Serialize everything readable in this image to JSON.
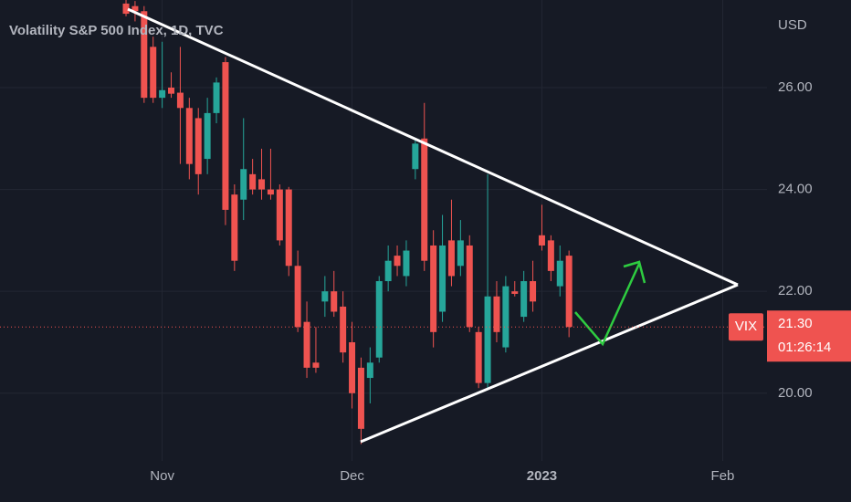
{
  "chart_data": {
    "type": "candlestick",
    "title": "Volatility S&P 500 Index, 1D, TVC",
    "currency": "USD",
    "symbol": "VIX",
    "last_price": {
      "value": 21.3,
      "label": "21.30"
    },
    "countdown": "01:26:14",
    "up_color": "#26a69a",
    "down_color": "#ef5350",
    "grid": true,
    "ylim": [
      18.67,
      27.72
    ],
    "yticks": [
      {
        "value": 20,
        "label": "20.00"
      },
      {
        "value": 22,
        "label": "22.00"
      },
      {
        "value": 24,
        "label": "24.00"
      },
      {
        "value": 26,
        "label": "26.00"
      }
    ],
    "xlim": [
      -13.94,
      70.9
    ],
    "xticks": [
      {
        "value": 4,
        "label": "Nov"
      },
      {
        "value": 25,
        "label": "Dec"
      },
      {
        "value": 46,
        "label": "2023"
      },
      {
        "value": 66,
        "label": "Feb"
      }
    ],
    "open": [
      27.65,
      27.6,
      27.5,
      26.8,
      25.8,
      26.0,
      25.9,
      25.6,
      25.4,
      24.6,
      25.5,
      26.5,
      23.9,
      23.8,
      24.3,
      24.2,
      24.0,
      24.0,
      24.0,
      22.5,
      21.4,
      20.6,
      21.8,
      22.0,
      21.7,
      21.0,
      20.5,
      20.3,
      20.7,
      22.2,
      22.7,
      22.3,
      24.4,
      25.0,
      22.9,
      21.6,
      23.0,
      22.5,
      22.9,
      21.2,
      20.2,
      21.9,
      20.9,
      22.0,
      21.5,
      22.2,
      23.1,
      23.0,
      22.1,
      22.7
    ],
    "high": [
      27.72,
      27.7,
      27.6,
      27.0,
      26.9,
      26.3,
      26.8,
      25.8,
      25.6,
      25.8,
      26.2,
      26.6,
      24.1,
      25.4,
      24.6,
      24.8,
      24.8,
      24.1,
      24.05,
      22.8,
      21.8,
      21.3,
      22.3,
      22.4,
      22.0,
      21.4,
      20.7,
      20.9,
      22.3,
      22.9,
      22.9,
      23.0,
      25.0,
      25.7,
      23.2,
      23.5,
      23.8,
      23.4,
      23.1,
      21.3,
      24.3,
      22.2,
      22.3,
      22.2,
      22.4,
      22.6,
      23.7,
      23.1,
      22.9,
      22.8
    ],
    "low": [
      27.4,
      27.3,
      25.7,
      25.7,
      25.6,
      25.8,
      24.5,
      24.2,
      23.9,
      24.3,
      25.3,
      23.3,
      22.4,
      23.4,
      23.9,
      23.8,
      23.8,
      22.9,
      22.3,
      21.2,
      20.3,
      20.4,
      21.5,
      21.5,
      20.6,
      19.7,
      19.0,
      19.8,
      20.6,
      22.0,
      22.3,
      22.1,
      24.2,
      22.4,
      20.9,
      21.4,
      22.1,
      22.3,
      21.2,
      20.1,
      20.1,
      21.0,
      20.8,
      21.9,
      21.4,
      21.6,
      22.8,
      22.2,
      21.9,
      21.1
    ],
    "close": [
      27.45,
      27.5,
      25.8,
      25.8,
      25.95,
      25.88,
      25.6,
      24.5,
      24.3,
      25.5,
      26.1,
      23.6,
      22.6,
      24.4,
      24.0,
      24.0,
      23.9,
      23.0,
      22.5,
      21.3,
      20.5,
      20.5,
      22.0,
      21.6,
      20.8,
      20.0,
      19.3,
      20.6,
      22.2,
      22.6,
      22.5,
      22.8,
      24.9,
      22.6,
      21.2,
      22.9,
      22.3,
      23.0,
      21.3,
      20.2,
      21.9,
      21.2,
      22.1,
      21.95,
      22.2,
      21.8,
      22.9,
      22.4,
      22.6,
      21.3
    ]
  }
}
